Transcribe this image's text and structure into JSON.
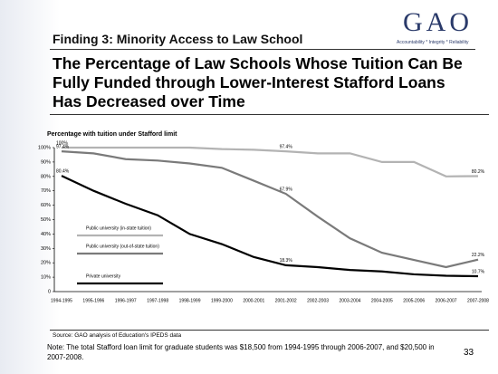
{
  "header": {
    "finding": "Finding 3: Minority Access to Law School",
    "logo_text": "GAO",
    "logo_tagline": "Accountability * Integrity * Reliability",
    "title": "The Percentage of Law Schools Whose Tuition Can Be Fully Funded through Lower-Interest Stafford Loans Has Decreased over Time"
  },
  "chart_data": {
    "type": "line",
    "title": "Percentage with tuition under Stafford limit",
    "categories": [
      "1994-1995",
      "1995-1996",
      "1996-1997",
      "1997-1998",
      "1998-1999",
      "1999-2000",
      "2000-2001",
      "2001-2002",
      "2002-2003",
      "2003-2004",
      "2004-2005",
      "2005-2006",
      "2006-2007",
      "2007-2008"
    ],
    "series": [
      {
        "name": "Public university (in-state tuition)",
        "color": "#b3b3b3",
        "values": [
          100,
          100,
          100,
          100,
          100,
          99,
          98.5,
          97.4,
          96,
          96,
          90,
          90,
          80,
          80.2
        ],
        "value_labels": [
          "100%",
          null,
          null,
          null,
          null,
          null,
          null,
          "97.4%",
          null,
          null,
          null,
          null,
          null,
          "80.2%"
        ]
      },
      {
        "name": "Public university (out-of-state tuition)",
        "color": "#7a7a7a",
        "values": [
          97.4,
          96,
          92,
          91,
          89,
          86,
          77,
          67.9,
          52,
          37,
          27,
          22,
          17,
          22.2
        ],
        "value_labels": [
          "97.4%",
          null,
          null,
          null,
          null,
          null,
          null,
          "67.9%",
          null,
          null,
          null,
          null,
          null,
          "22.2%"
        ]
      },
      {
        "name": "Private university",
        "color": "#000000",
        "values": [
          80.4,
          70,
          61,
          53,
          40,
          33,
          24,
          18.3,
          17,
          15,
          14,
          12,
          11,
          10.7
        ],
        "value_labels": [
          "80.4%",
          null,
          null,
          null,
          null,
          null,
          null,
          "18.3%",
          null,
          null,
          null,
          null,
          null,
          "10.7%"
        ]
      }
    ],
    "ylim": [
      0,
      100
    ],
    "yticks": [
      0,
      {
        "value": 10,
        "label": "10%"
      },
      {
        "value": 20,
        "label": "20%"
      },
      {
        "value": 30,
        "label": "30%"
      },
      {
        "value": 40,
        "label": "40%"
      },
      {
        "value": 50,
        "label": "50%"
      },
      {
        "value": 60,
        "label": "60%"
      },
      {
        "value": 70,
        "label": "70%"
      },
      {
        "value": 80,
        "label": "80%"
      },
      {
        "value": 90,
        "label": "90%"
      },
      {
        "value": 100,
        "label": "100%"
      }
    ],
    "grid": false,
    "legend": "left"
  },
  "source": "Source: GAO analysis of Education's IPEDS data",
  "note": "Note: The total Stafford loan limit for graduate students was $18,500 from 1994-1995 through 2006-2007, and $20,500 in 2007-2008.",
  "page_number": 33
}
